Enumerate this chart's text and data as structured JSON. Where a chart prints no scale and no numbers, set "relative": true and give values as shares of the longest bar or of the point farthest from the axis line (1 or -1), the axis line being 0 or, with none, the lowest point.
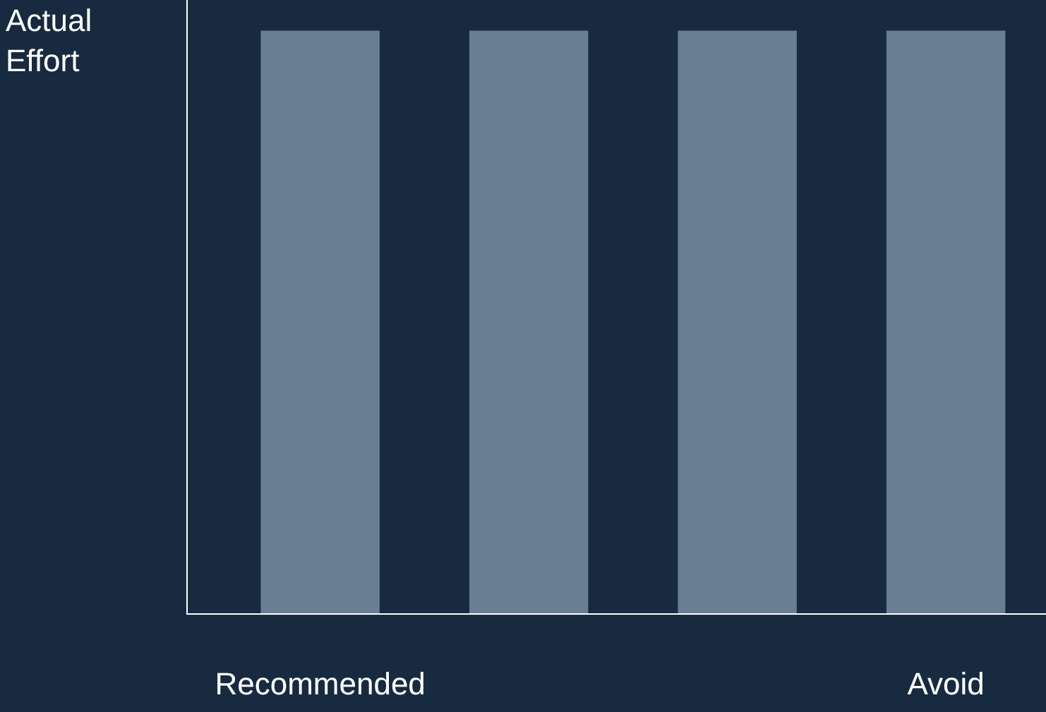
{
  "chart_data": {
    "type": "bar",
    "relative": true,
    "ylabel": "Actual Effort",
    "categories": [
      "Recommended",
      null,
      null,
      "Avoid"
    ],
    "values": [
      1,
      1,
      1,
      1
    ],
    "color": "#687e92",
    "legend": false
  }
}
